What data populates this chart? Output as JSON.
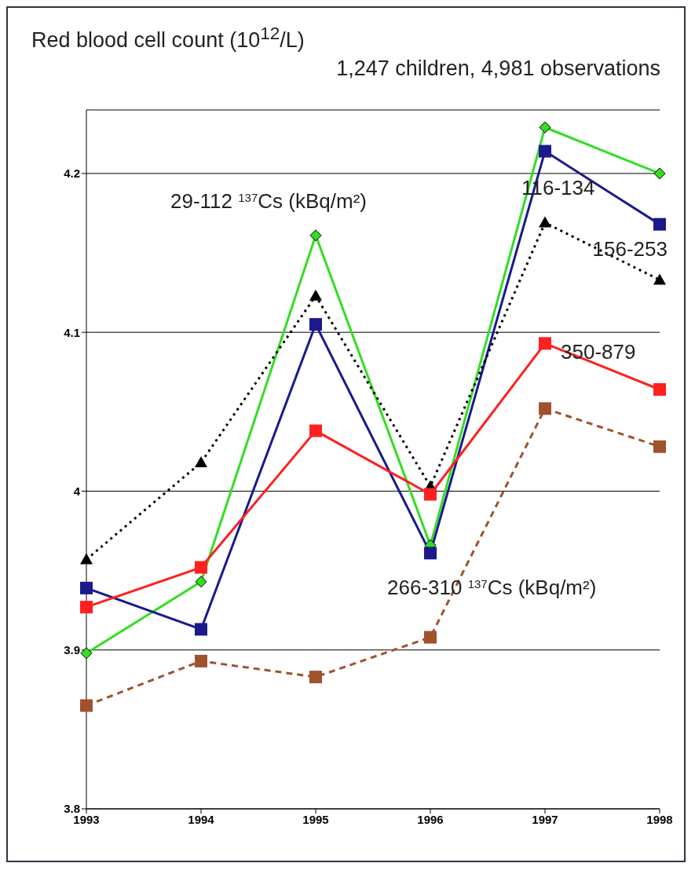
{
  "chart_data": {
    "type": "line",
    "ylabel": "Red blood cell count (10$^{12}$/L)",
    "subtitle": "1,247 children, 4,981 observations",
    "categories": [
      "1993",
      "1994",
      "1995",
      "1996",
      "1997",
      "1998"
    ],
    "series": [
      {
        "name": "29-112 $^{137}$Cs (kBq/m²)",
        "color": "#33dd22",
        "marker": "diamond",
        "line_style": "solid",
        "values": [
          3.898,
          3.943,
          4.161,
          3.966,
          4.229,
          4.2
        ]
      },
      {
        "name": "116-134",
        "color": "#1a1a8c",
        "marker": "square",
        "line_style": "solid",
        "values": [
          3.939,
          3.913,
          4.105,
          3.961,
          4.214,
          4.168
        ]
      },
      {
        "name": "156-253",
        "color": "#000000",
        "marker": "triangle",
        "line_style": "dotted",
        "values": [
          3.957,
          4.018,
          4.123,
          4.003,
          4.169,
          4.133
        ]
      },
      {
        "name": "350-879",
        "color": "#ff2020",
        "marker": "square",
        "line_style": "solid",
        "values": [
          3.927,
          3.952,
          4.038,
          3.998,
          4.093,
          4.064
        ]
      },
      {
        "name": "266-310 $^{137}$Cs (kBq/m²)",
        "color": "#a0522d",
        "marker": "square",
        "line_style": "dashed",
        "values": [
          3.865,
          3.893,
          3.883,
          3.908,
          4.052,
          4.028
        ]
      }
    ],
    "ylim": [
      3.8,
      4.24
    ],
    "yticks": [
      3.8,
      3.9,
      4,
      4.1,
      4.2
    ],
    "grid": "y"
  }
}
